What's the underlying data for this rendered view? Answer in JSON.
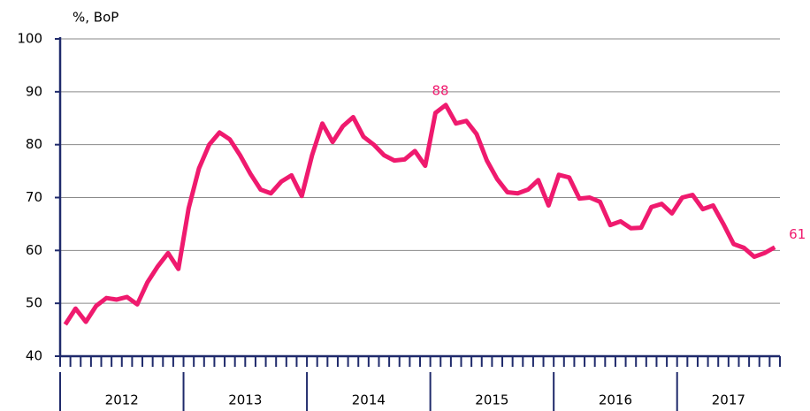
{
  "chart_data": {
    "type": "line",
    "y_label": "%, BoP",
    "groups": [
      {
        "label": "2012",
        "count": 12
      },
      {
        "label": "2013",
        "count": 12
      },
      {
        "label": "2014",
        "count": 12
      },
      {
        "label": "2015",
        "count": 12
      },
      {
        "label": "2016",
        "count": 12
      },
      {
        "label": "2017",
        "count": 10
      }
    ],
    "series": [
      {
        "color": "#ef1a6e",
        "values": [
          46,
          49,
          46.5,
          49.5,
          51,
          50.7,
          51.2,
          49.8,
          54,
          57,
          59.5,
          56.5,
          68,
          75.5,
          80,
          82.3,
          81,
          78,
          74.5,
          71.5,
          70.8,
          73,
          74.2,
          70.3,
          78,
          84,
          80.5,
          83.5,
          85.2,
          81.5,
          80,
          78,
          77,
          77.2,
          78.8,
          76,
          86,
          87.5,
          84,
          84.5,
          82,
          77,
          73.5,
          71,
          70.8,
          71.5,
          73.3,
          68.5,
          74.3,
          73.8,
          69.8,
          70,
          69.2,
          64.8,
          65.5,
          64.2,
          64.3,
          68.2,
          68.8,
          67,
          70,
          70.5,
          67.8,
          68.5,
          65,
          61.2,
          60.5,
          58.8,
          59.5,
          60.6
        ],
        "value_labels": [
          null,
          null,
          null,
          null,
          null,
          null,
          null,
          null,
          null,
          null,
          null,
          null,
          null,
          null,
          null,
          null,
          null,
          null,
          null,
          null,
          null,
          null,
          null,
          null,
          null,
          null,
          null,
          null,
          null,
          null,
          null,
          null,
          null,
          null,
          null,
          null,
          null,
          "88",
          null,
          null,
          null,
          null,
          null,
          null,
          null,
          null,
          null,
          null,
          null,
          null,
          null,
          null,
          null,
          null,
          null,
          null,
          null,
          null,
          null,
          null,
          null,
          null,
          null,
          null,
          null,
          null,
          null,
          null,
          null,
          "61"
        ]
      }
    ],
    "ylim": [
      40,
      100
    ],
    "yticks": [
      40,
      50,
      60,
      70,
      80,
      90,
      100
    ],
    "grid": true
  }
}
